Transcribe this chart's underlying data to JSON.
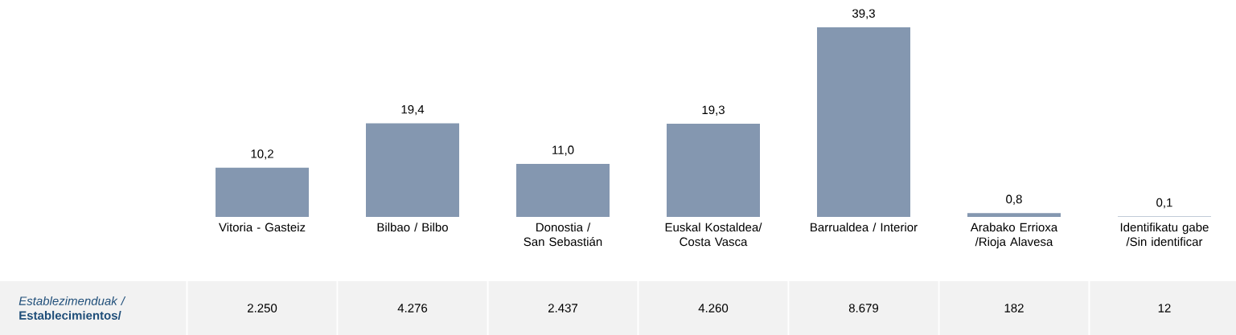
{
  "chart_data": {
    "type": "bar",
    "categories": [
      "Vitoria - Gasteiz",
      "Bilbao / Bilbo",
      "Donostia / San Sebastián",
      "Euskal Kostaldea/ Costa Vasca",
      "Barrualdea / Interior",
      "Arabako Errioxa /Rioja Alavesa",
      "Identifikatu gabe /Sin identificar"
    ],
    "values": [
      10.2,
      19.4,
      11.0,
      19.3,
      39.3,
      0.8,
      0.1
    ],
    "value_labels": [
      "10,2",
      "19,4",
      "11,0",
      "19,3",
      "39,3",
      "0,8",
      "0,1"
    ],
    "color": "#8497b0",
    "annotations": [
      "*Establezimenduak /* **Establecimientos/**",
      "2.250",
      "4.276",
      "2.437",
      "4.260",
      "8.679",
      "182",
      "12"
    ]
  }
}
